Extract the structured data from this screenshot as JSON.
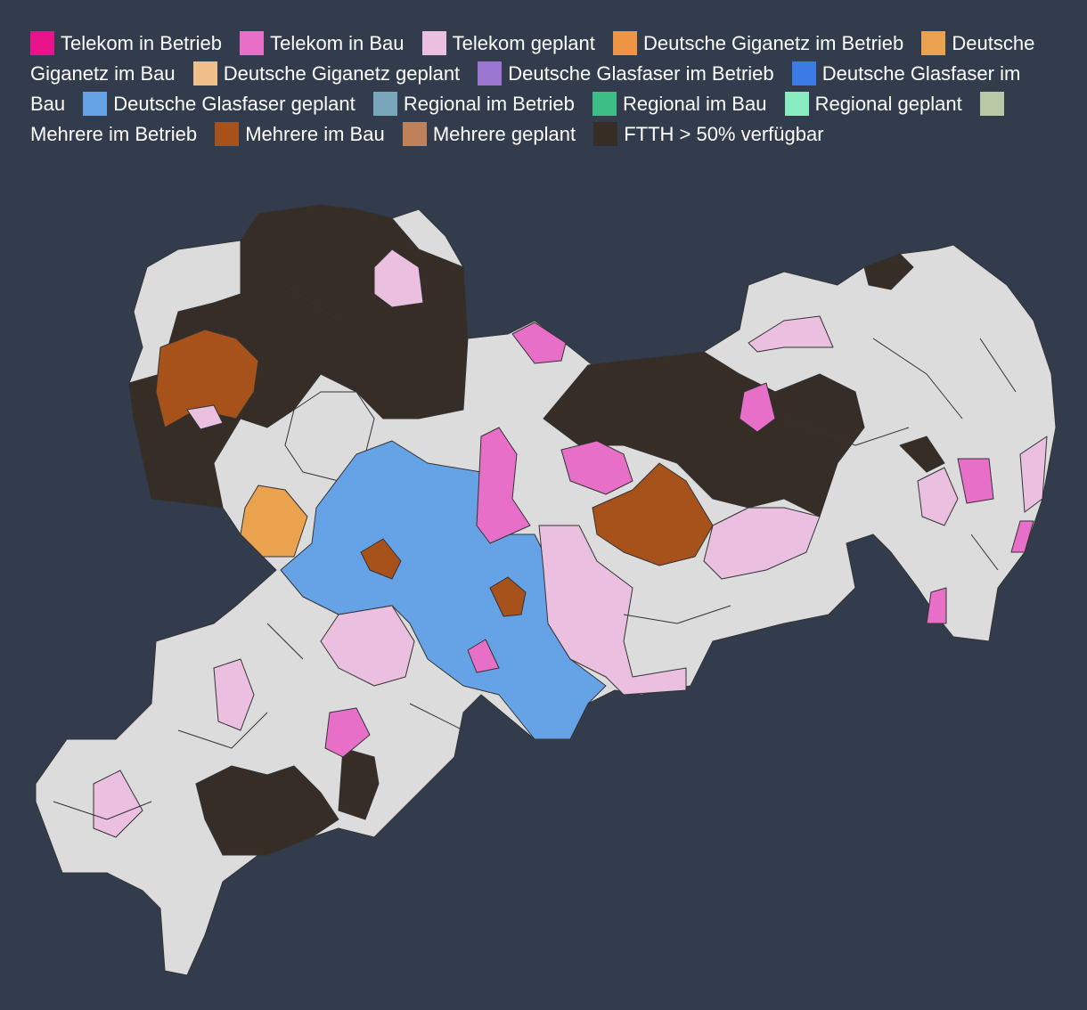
{
  "legend": [
    {
      "label": "Telekom in Betrieb",
      "color": "#e8138a"
    },
    {
      "label": "Telekom in Bau",
      "color": "#e86fc8"
    },
    {
      "label": "Telekom geplant",
      "color": "#ebbfdf"
    },
    {
      "label": "Deutsche Giganetz im Betrieb",
      "color": "#ef9444"
    },
    {
      "label": "Deutsche Giganetz im Bau",
      "color": "#eba24e"
    },
    {
      "label": "Deutsche Giganetz geplant",
      "color": "#f0bf89"
    },
    {
      "label": "Deutsche Glasfaser im Betrieb",
      "color": "#9b77d1"
    },
    {
      "label": "Deutsche Glasfaser im Bau",
      "color": "#3c7ae6"
    },
    {
      "label": "Deutsche Glasfaser geplant",
      "color": "#66a2e6"
    },
    {
      "label": "Regional im Betrieb",
      "color": "#7aa6bb"
    },
    {
      "label": "Regional im Bau",
      "color": "#3bbf86"
    },
    {
      "label": "Regional geplant",
      "color": "#89ecc0"
    },
    {
      "label": "Mehrere im Betrieb",
      "color": "#b9c9a8"
    },
    {
      "label": "Mehrere im Bau",
      "color": "#a6521a"
    },
    {
      "label": "Mehrere geplant",
      "color": "#bf8159"
    },
    {
      "label": "FTTH > 50% verfügbar",
      "color": "#352d26"
    }
  ]
}
